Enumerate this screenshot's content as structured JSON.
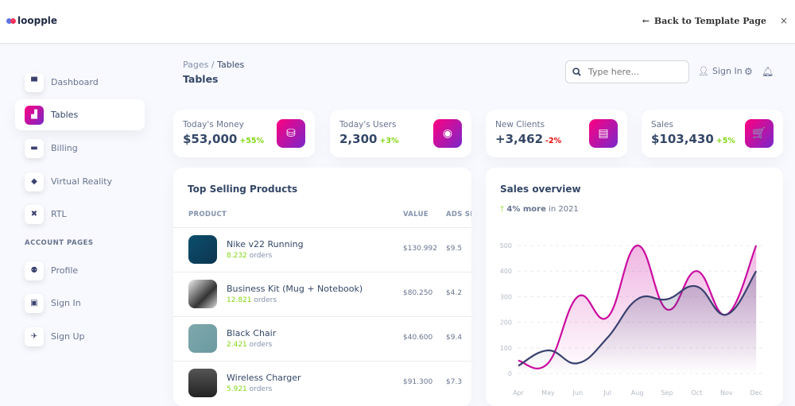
{
  "topbar": {
    "logo": "loopple",
    "back": "Back to Template Page",
    "close": "×"
  },
  "sidebar": {
    "items": [
      {
        "label": "Dashboard",
        "icon": "shop-icon",
        "glyph": "▀"
      },
      {
        "label": "Tables",
        "icon": "office-icon",
        "glyph": "▟"
      },
      {
        "label": "Billing",
        "icon": "credit-card-icon",
        "glyph": "▬"
      },
      {
        "label": "Virtual Reality",
        "icon": "box-icon",
        "glyph": "◆"
      },
      {
        "label": "RTL",
        "icon": "settings-tools-icon",
        "glyph": "✖"
      }
    ],
    "section": "ACCOUNT PAGES",
    "account_items": [
      {
        "label": "Profile",
        "icon": "customer-support-icon",
        "glyph": "⚉"
      },
      {
        "label": "Sign In",
        "icon": "document-icon",
        "glyph": "▣"
      },
      {
        "label": "Sign Up",
        "icon": "spaceship-icon",
        "glyph": "✈"
      }
    ]
  },
  "header": {
    "breadcrumb_root": "Pages",
    "breadcrumb_sep": "/",
    "breadcrumb_current": "Tables",
    "title": "Tables",
    "search_placeholder": "Type here...",
    "sign_in": "Sign In"
  },
  "stats": [
    {
      "label": "Today's Money",
      "value": "$53,000",
      "change": "+55%",
      "trend": "pos",
      "glyph": "⛁"
    },
    {
      "label": "Today's Users",
      "value": "2,300",
      "change": "+3%",
      "trend": "pos",
      "glyph": "◉"
    },
    {
      "label": "New Clients",
      "value": "+3,462",
      "change": "-2%",
      "trend": "neg",
      "glyph": "▤"
    },
    {
      "label": "Sales",
      "value": "$103,430",
      "change": "+5%",
      "trend": "pos",
      "glyph": "🛒"
    }
  ],
  "table": {
    "title": "Top Selling Products",
    "columns": [
      "PRODUCT",
      "VALUE",
      "ADS SPI"
    ],
    "rows": [
      {
        "name": "Nike v22 Running",
        "orders": "8.232",
        "orders_label": "orders",
        "value": "$130.992",
        "ads": "$9.5"
      },
      {
        "name": "Business Kit (Mug + Notebook)",
        "orders": "12.821",
        "orders_label": "orders",
        "value": "$80.250",
        "ads": "$4.2"
      },
      {
        "name": "Black Chair",
        "orders": "2.421",
        "orders_label": "orders",
        "value": "$40.600",
        "ads": "$9.4"
      },
      {
        "name": "Wireless Charger",
        "orders": "5.921",
        "orders_label": "orders",
        "value": "$91.300",
        "ads": "$7.3"
      }
    ]
  },
  "chart_data": {
    "type": "line",
    "title": "Sales overview",
    "subtitle_bold": "4% more",
    "subtitle_rest": "in 2021",
    "categories": [
      "Apr",
      "May",
      "Jun",
      "Jul",
      "Aug",
      "Sep",
      "Oct",
      "Nov",
      "Dec"
    ],
    "ylim": [
      0,
      500
    ],
    "yticks": [
      0,
      100,
      200,
      300,
      400,
      500
    ],
    "grid": true,
    "series": [
      {
        "values": [
          50,
          40,
          300,
          220,
          500,
          250,
          400,
          230,
          500
        ],
        "color": "#cb0c9f"
      },
      {
        "values": [
          30,
          90,
          40,
          140,
          290,
          290,
          340,
          230,
          400
        ],
        "color": "#3a416f"
      }
    ]
  }
}
